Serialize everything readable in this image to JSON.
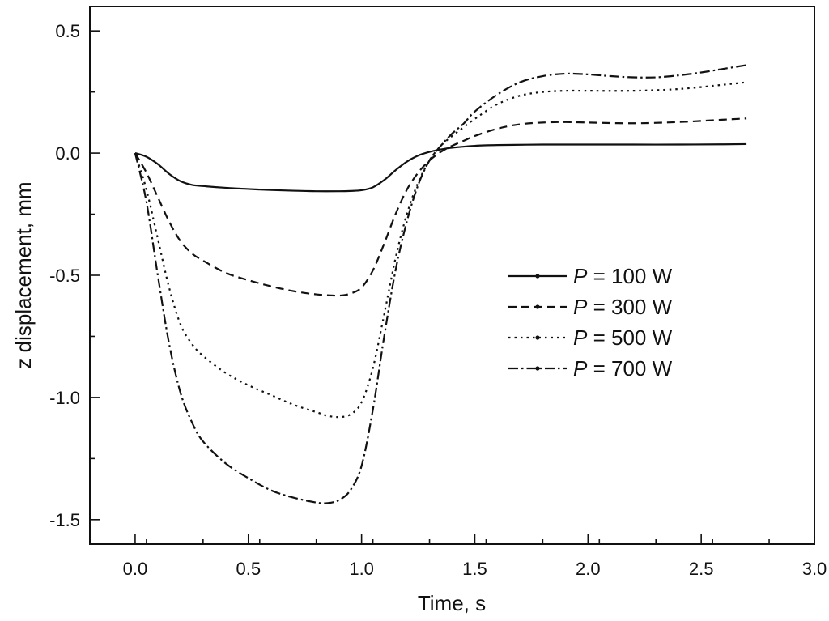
{
  "chart_data": {
    "type": "line",
    "title": "",
    "xlabel": "Time, s",
    "ylabel": "z displacement, mm",
    "xlim": [
      -0.2,
      3.0
    ],
    "ylim": [
      -1.6,
      0.6
    ],
    "xticks": [
      0.0,
      0.5,
      1.0,
      1.5,
      2.0,
      2.5,
      3.0
    ],
    "xtick_labels": [
      "0.0",
      "0.5",
      "1.0",
      "1.5",
      "2.0",
      "2.5",
      "3.0"
    ],
    "yticks": [
      -1.5,
      -1.0,
      -0.5,
      0.0,
      0.5
    ],
    "ytick_labels": [
      "-1.5",
      "-1.0",
      "-0.5",
      "0.0",
      "0.5"
    ],
    "grid": false,
    "legend_position": "center-right",
    "series": [
      {
        "name": "100 W",
        "legend_prefix": "P",
        "legend_eq": " = ",
        "dash": "solid",
        "x": [
          0.0,
          0.05,
          0.1,
          0.15,
          0.2,
          0.25,
          0.3,
          0.4,
          0.5,
          0.6,
          0.7,
          0.8,
          0.9,
          0.95,
          1.0,
          1.05,
          1.1,
          1.15,
          1.2,
          1.25,
          1.3,
          1.35,
          1.4,
          1.5,
          1.6,
          1.8,
          2.0,
          2.2,
          2.4,
          2.6,
          2.7
        ],
        "y": [
          0.0,
          -0.015,
          -0.045,
          -0.085,
          -0.115,
          -0.13,
          -0.135,
          -0.142,
          -0.147,
          -0.151,
          -0.154,
          -0.156,
          -0.156,
          -0.155,
          -0.152,
          -0.14,
          -0.11,
          -0.07,
          -0.035,
          -0.01,
          0.005,
          0.015,
          0.022,
          0.03,
          0.033,
          0.035,
          0.035,
          0.035,
          0.035,
          0.036,
          0.037
        ]
      },
      {
        "name": "300 W",
        "legend_prefix": "P",
        "legend_eq": " = ",
        "dash": "dash",
        "x": [
          0.0,
          0.05,
          0.1,
          0.15,
          0.2,
          0.25,
          0.3,
          0.4,
          0.5,
          0.6,
          0.7,
          0.8,
          0.9,
          0.95,
          1.0,
          1.05,
          1.1,
          1.15,
          1.2,
          1.25,
          1.3,
          1.35,
          1.4,
          1.45,
          1.5,
          1.6,
          1.7,
          1.8,
          1.9,
          2.0,
          2.2,
          2.4,
          2.6,
          2.7
        ],
        "y": [
          0.0,
          -0.08,
          -0.18,
          -0.28,
          -0.36,
          -0.41,
          -0.44,
          -0.49,
          -0.52,
          -0.545,
          -0.565,
          -0.578,
          -0.583,
          -0.575,
          -0.55,
          -0.48,
          -0.37,
          -0.25,
          -0.15,
          -0.08,
          -0.03,
          0.005,
          0.03,
          0.05,
          0.07,
          0.1,
          0.118,
          0.125,
          0.127,
          0.125,
          0.122,
          0.127,
          0.137,
          0.142
        ]
      },
      {
        "name": "500 W",
        "legend_prefix": "P",
        "legend_eq": " = ",
        "dash": "dot",
        "x": [
          0.0,
          0.05,
          0.1,
          0.15,
          0.2,
          0.25,
          0.3,
          0.4,
          0.5,
          0.6,
          0.7,
          0.8,
          0.85,
          0.9,
          0.95,
          1.0,
          1.05,
          1.1,
          1.15,
          1.2,
          1.25,
          1.3,
          1.35,
          1.4,
          1.45,
          1.5,
          1.6,
          1.7,
          1.8,
          1.9,
          2.0,
          2.2,
          2.4,
          2.6,
          2.7
        ],
        "y": [
          0.0,
          -0.15,
          -0.35,
          -0.55,
          -0.7,
          -0.78,
          -0.83,
          -0.9,
          -0.95,
          -0.99,
          -1.03,
          -1.06,
          -1.075,
          -1.08,
          -1.07,
          -1.02,
          -0.88,
          -0.66,
          -0.43,
          -0.25,
          -0.12,
          -0.03,
          0.03,
          0.07,
          0.105,
          0.14,
          0.2,
          0.235,
          0.25,
          0.255,
          0.255,
          0.255,
          0.262,
          0.28,
          0.29
        ]
      },
      {
        "name": "700 W",
        "legend_prefix": "P",
        "legend_eq": " = ",
        "dash": "dashdot",
        "x": [
          0.0,
          0.05,
          0.1,
          0.15,
          0.2,
          0.25,
          0.3,
          0.4,
          0.5,
          0.6,
          0.7,
          0.8,
          0.85,
          0.9,
          0.95,
          1.0,
          1.05,
          1.1,
          1.15,
          1.2,
          1.25,
          1.3,
          1.35,
          1.4,
          1.45,
          1.5,
          1.6,
          1.7,
          1.8,
          1.9,
          2.0,
          2.1,
          2.2,
          2.3,
          2.4,
          2.5,
          2.6,
          2.7
        ],
        "y": [
          0.0,
          -0.2,
          -0.5,
          -0.78,
          -0.98,
          -1.1,
          -1.18,
          -1.27,
          -1.33,
          -1.38,
          -1.41,
          -1.43,
          -1.432,
          -1.42,
          -1.38,
          -1.28,
          -1.05,
          -0.75,
          -0.48,
          -0.28,
          -0.13,
          -0.03,
          0.03,
          0.08,
          0.12,
          0.17,
          0.24,
          0.29,
          0.315,
          0.325,
          0.322,
          0.315,
          0.31,
          0.31,
          0.318,
          0.33,
          0.345,
          0.36
        ]
      }
    ]
  }
}
